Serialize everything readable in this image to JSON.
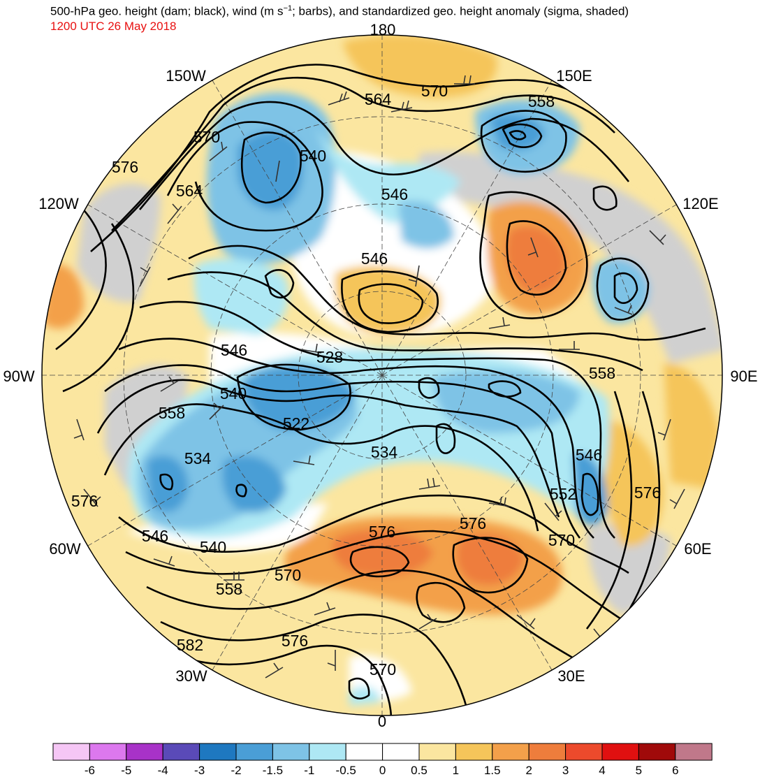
{
  "title": "500-hPa geo. height (dam; black), wind (m s",
  "title_sup": "−1",
  "title_rest": "; barbs), and standardized geo. height anomaly (sigma, shaded)",
  "subtitle": "1200 UTC 26 May 2018",
  "meridian_labels": [
    "180",
    "150E",
    "120E",
    "90E",
    "60E",
    "30E",
    "0",
    "30W",
    "60W",
    "90W",
    "120W",
    "150W"
  ],
  "contour_labels": [
    "564",
    "570",
    "558",
    "570",
    "576",
    "564",
    "540",
    "546",
    "546",
    "528",
    "522",
    "540",
    "546",
    "558",
    "534",
    "534",
    "540",
    "546",
    "576",
    "558",
    "570",
    "576",
    "576",
    "582",
    "576",
    "570",
    "546",
    "552",
    "576",
    "570",
    "558"
  ],
  "colorbar": {
    "labels": [
      "-6",
      "-5",
      "-4",
      "-3",
      "-2",
      "-1.5",
      "-1",
      "-0.5",
      "0",
      "0.5",
      "1",
      "1.5",
      "2",
      "3",
      "4",
      "5",
      "6"
    ],
    "colors": [
      "#f5c6f5",
      "#dc78ee",
      "#a832c8",
      "#5a4ab8",
      "#1e78c0",
      "#4a9ed6",
      "#7ec3e6",
      "#aee8f4",
      "#ffffff",
      "#ffffff",
      "#fbe6a0",
      "#f5c55a",
      "#f3a04a",
      "#ee7d3c",
      "#ec4a2c",
      "#e01010",
      "#a00a0a",
      "#c0788a"
    ]
  },
  "colors": {
    "land_grey": "#d0d0d0",
    "subtitle_red": "#e81010"
  }
}
